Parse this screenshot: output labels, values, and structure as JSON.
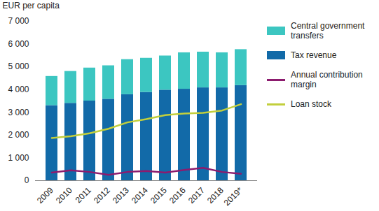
{
  "chart_data": {
    "type": "bar",
    "stacked": true,
    "ylabel": "EUR per capita",
    "categories": [
      "2009",
      "2010",
      "2011",
      "2012",
      "2013",
      "2014",
      "2015",
      "2016",
      "2017",
      "2018",
      "2019*"
    ],
    "ylim": [
      0,
      7000
    ],
    "yticks": [
      0,
      {
        "value": 1000,
        "label": "1 000"
      },
      {
        "value": 2000,
        "label": "2 000"
      },
      {
        "value": 3000,
        "label": "3 000"
      },
      {
        "value": 4000,
        "label": "4 000"
      },
      {
        "value": 5000,
        "label": "5 000"
      },
      {
        "value": 6000,
        "label": "6 000"
      },
      {
        "value": 7000,
        "label": "7 000"
      }
    ],
    "grid": false,
    "legend": "right",
    "series": [
      {
        "name": "Central government transfers",
        "type": "bar",
        "color": "#3cc6c1",
        "values": [
          1280,
          1400,
          1450,
          1470,
          1540,
          1500,
          1500,
          1600,
          1570,
          1540,
          1580
        ]
      },
      {
        "name": "Tax revenue",
        "type": "bar",
        "color": "#126aa8",
        "values": [
          3300,
          3400,
          3500,
          3580,
          3780,
          3880,
          3980,
          4020,
          4080,
          4080,
          4180
        ]
      },
      {
        "name": "Annual contribution margin",
        "type": "line",
        "color": "#8c1b6e",
        "values": [
          350,
          450,
          380,
          250,
          380,
          420,
          350,
          470,
          560,
          380,
          300
        ]
      },
      {
        "name": "Loan stock",
        "type": "line",
        "color": "#c2cf3c",
        "values": [
          1870,
          1950,
          2080,
          2280,
          2560,
          2700,
          2880,
          2950,
          2980,
          3080,
          3360
        ]
      }
    ]
  }
}
